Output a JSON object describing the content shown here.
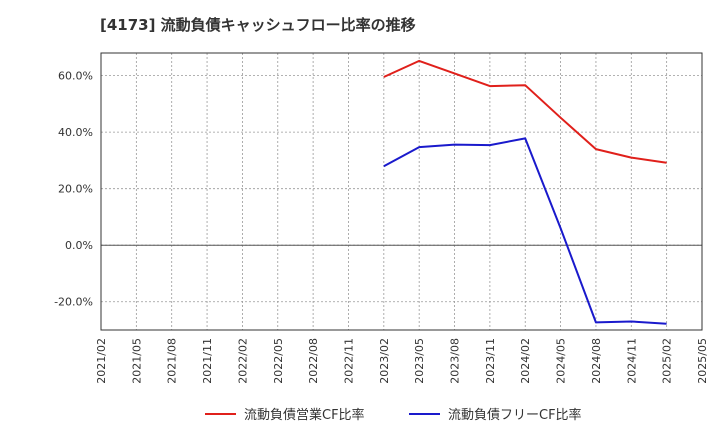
{
  "chart_data": {
    "type": "line",
    "title": "[4173]  流動負債キャッシュフロー比率の推移",
    "xlabel": "",
    "ylabel": "",
    "x": [
      "2021/02",
      "2021/05",
      "2021/08",
      "2021/11",
      "2022/02",
      "2022/05",
      "2022/08",
      "2022/11",
      "2023/02",
      "2023/05",
      "2023/08",
      "2023/11",
      "2024/02",
      "2024/05",
      "2024/08",
      "2024/11",
      "2025/02",
      "2025/05"
    ],
    "ylim": [
      -30,
      68
    ],
    "yticks": [
      -20,
      0,
      20,
      40,
      60
    ],
    "ytick_labels": [
      "-20.0%",
      "0.0%",
      "20.0%",
      "40.0%",
      "60.0%"
    ],
    "grid": true,
    "legend_position": "bottom",
    "series": [
      {
        "name": "流動負債営業CF比率",
        "color": "#e0201b",
        "values": [
          null,
          null,
          null,
          null,
          null,
          null,
          null,
          null,
          59.5,
          65.2,
          60.8,
          56.3,
          56.6,
          45.1,
          34.0,
          31.0,
          29.2,
          null
        ]
      },
      {
        "name": "流動負債フリーCF比率",
        "color": "#1a1acc",
        "values": [
          null,
          null,
          null,
          null,
          null,
          null,
          null,
          null,
          27.9,
          34.7,
          35.6,
          35.4,
          37.8,
          6.0,
          -27.3,
          -27.0,
          -27.8,
          null
        ]
      }
    ]
  }
}
